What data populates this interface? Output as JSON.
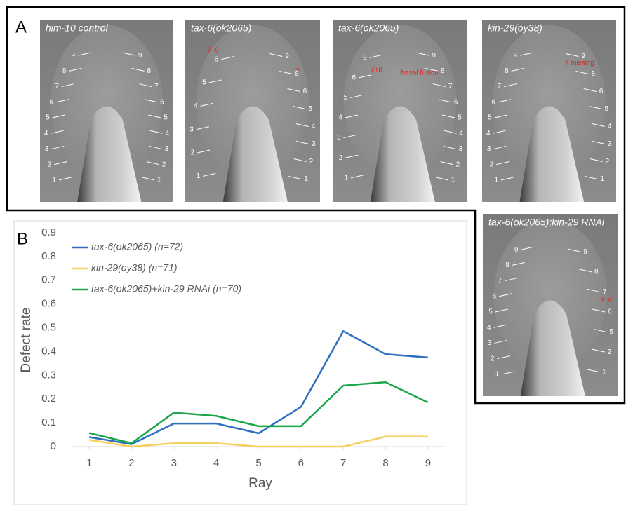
{
  "panel_a": {
    "label": "A",
    "images": [
      {
        "caption": "him-10 control",
        "rays_left": [
          9,
          8,
          7,
          6,
          5,
          4,
          3,
          2,
          1
        ],
        "rays_right": [
          9,
          8,
          7,
          6,
          5,
          4,
          3,
          2,
          1
        ],
        "red": []
      },
      {
        "caption": "tax-6(ok2065)",
        "rays_left": [
          6,
          5,
          4,
          3,
          2,
          1
        ],
        "rays_right": [
          9,
          8,
          6,
          5,
          4,
          3,
          2,
          1
        ],
        "red": [
          "7–9",
          "7"
        ]
      },
      {
        "caption": "tax-6(ok2065)",
        "rays_left": [
          9,
          6,
          5,
          4,
          3,
          2,
          1
        ],
        "rays_right": [
          9,
          8,
          7,
          6,
          5,
          4,
          3,
          2,
          1
        ],
        "red": [
          "7+8",
          "basal fusion"
        ]
      },
      {
        "caption": "kin-29(oy38)",
        "rays_left": [
          9,
          8,
          7,
          6,
          5,
          4,
          3,
          2,
          1
        ],
        "rays_right": [
          9,
          8,
          6,
          5,
          4,
          3,
          2,
          1
        ],
        "red": [
          "7 missing"
        ]
      },
      {
        "caption": "tax-6(ok2065);kin-29 RNAi",
        "rays_left": [
          9,
          8,
          7,
          6,
          5,
          4,
          3,
          2,
          1
        ],
        "rays_right": [
          9,
          8,
          7,
          6,
          5,
          2,
          1
        ],
        "red": [
          "3+4"
        ]
      }
    ]
  },
  "panel_b": {
    "label": "B"
  },
  "chart_data": {
    "type": "line",
    "x_label": "Ray",
    "y_label": "Defect rate",
    "x": [
      1,
      2,
      3,
      4,
      5,
      6,
      7,
      8,
      9
    ],
    "xlim": [
      0.6,
      9.4
    ],
    "xticks": [
      1,
      2,
      3,
      4,
      5,
      6,
      7,
      8,
      9
    ],
    "ylim": [
      0,
      0.9
    ],
    "yticks": [
      0,
      0.1,
      0.2,
      0.3,
      0.4,
      0.5,
      0.6,
      0.7,
      0.8,
      0.9
    ],
    "grid": false,
    "legend": "top-left",
    "series": [
      {
        "name": "tax-6(ok2065) (n=72)",
        "color": "#2e6fbf",
        "values": [
          0.04,
          0.01,
          0.097,
          0.097,
          0.056,
          0.167,
          0.486,
          0.389,
          0.375
        ]
      },
      {
        "name": "kin-29(oy38) (n=71)",
        "color": "#f7d05e",
        "values": [
          0.028,
          0,
          0.014,
          0.014,
          0,
          0,
          0,
          0.042,
          0.042
        ]
      },
      {
        "name": "tax-6(ok2065)+kin-29 RNAi (n=70)",
        "color": "#1aa64a",
        "values": [
          0.057,
          0.014,
          0.143,
          0.129,
          0.086,
          0.086,
          0.257,
          0.271,
          0.186
        ]
      }
    ]
  }
}
